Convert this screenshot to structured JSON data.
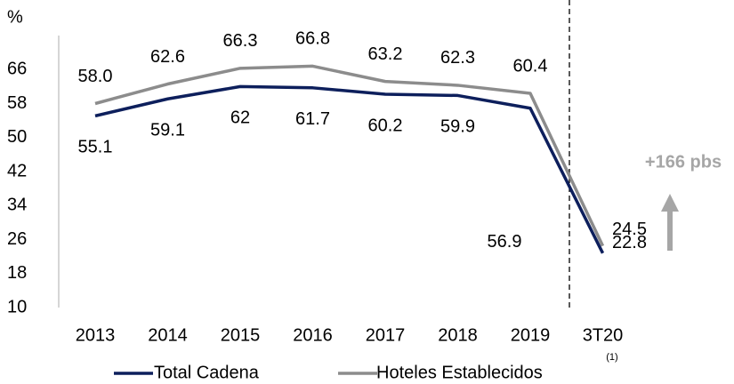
{
  "chart_data": {
    "type": "line",
    "y_label": "%",
    "categories": [
      "2013",
      "2014",
      "2015",
      "2016",
      "2017",
      "2018",
      "2019",
      "3T20"
    ],
    "series": [
      {
        "name": "Total Cadena",
        "color": "#0d1f5c",
        "values": [
          55.1,
          59.1,
          62,
          61.7,
          60.2,
          59.9,
          56.9,
          22.8
        ]
      },
      {
        "name": "Hoteles Establecidos",
        "color": "#8c8c8c",
        "values": [
          58.0,
          62.6,
          66.3,
          66.8,
          63.2,
          62.3,
          60.4,
          24.5
        ],
        "value_labels": [
          "58.0",
          "62.6",
          "66.3",
          "66.8",
          "63.2",
          "62.3",
          "60.4",
          "24.5"
        ]
      }
    ],
    "legend_note": "(1)",
    "annotation": "+166 pbs",
    "ylim": [
      10,
      74
    ],
    "yticks": [
      10,
      18,
      26,
      34,
      42,
      50,
      58,
      66
    ]
  }
}
